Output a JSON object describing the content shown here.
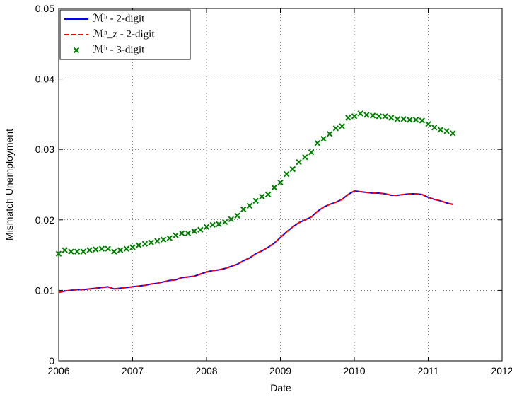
{
  "chart_data": {
    "type": "line",
    "xlabel": "Date",
    "ylabel": "Mismatch Unemployment",
    "xlim": [
      2006,
      2012
    ],
    "ylim": [
      0,
      0.05
    ],
    "xticks": [
      2006,
      2007,
      2008,
      2009,
      2010,
      2011,
      2012
    ],
    "yticks": [
      0,
      0.01,
      0.02,
      0.03,
      0.04,
      0.05
    ],
    "grid": true,
    "legend": "upper left",
    "x": [
      2006,
      2006.0833,
      2006.1667,
      2006.25,
      2006.3333,
      2006.4167,
      2006.5,
      2006.5833,
      2006.6667,
      2006.75,
      2006.8333,
      2006.9167,
      2007,
      2007.0833,
      2007.1667,
      2007.25,
      2007.3333,
      2007.4167,
      2007.5,
      2007.5833,
      2007.6667,
      2007.75,
      2007.8333,
      2007.9167,
      2008,
      2008.0833,
      2008.1667,
      2008.25,
      2008.3333,
      2008.4167,
      2008.5,
      2008.5833,
      2008.6667,
      2008.75,
      2008.8333,
      2008.9167,
      2009,
      2009.0833,
      2009.1667,
      2009.25,
      2009.3333,
      2009.4167,
      2009.5,
      2009.5833,
      2009.6667,
      2009.75,
      2009.8333,
      2009.9167,
      2010,
      2010.0833,
      2010.1667,
      2010.25,
      2010.3333,
      2010.4167,
      2010.5,
      2010.5833,
      2010.6667,
      2010.75,
      2010.8333,
      2010.9167,
      2011,
      2011.0833,
      2011.1667,
      2011.25,
      2011.3333
    ],
    "series": [
      {
        "name": "ℳʰ - 2-digit",
        "color": "#0000ff",
        "style": "solid",
        "values": [
          0.0097,
          0.0099,
          0.01,
          0.0101,
          0.0101,
          0.0102,
          0.0103,
          0.0104,
          0.0105,
          0.0102,
          0.0103,
          0.0104,
          0.0105,
          0.0106,
          0.0107,
          0.0109,
          0.011,
          0.0112,
          0.0114,
          0.0115,
          0.0118,
          0.0119,
          0.012,
          0.0123,
          0.0126,
          0.0128,
          0.0129,
          0.0131,
          0.0134,
          0.0137,
          0.0142,
          0.0146,
          0.0152,
          0.0156,
          0.0161,
          0.0167,
          0.0175,
          0.0183,
          0.019,
          0.0196,
          0.02,
          0.0204,
          0.0212,
          0.0218,
          0.0222,
          0.0225,
          0.0229,
          0.0236,
          0.0241,
          0.024,
          0.0239,
          0.0238,
          0.0238,
          0.0237,
          0.0235,
          0.0235,
          0.0236,
          0.0237,
          0.0237,
          0.0236,
          0.0232,
          0.0229,
          0.0227,
          0.0224,
          0.0222
        ]
      },
      {
        "name": "ℳʰ_z - 2-digit",
        "color": "#ff0000",
        "style": "dashed",
        "values": [
          0.0097,
          0.0099,
          0.01,
          0.0101,
          0.0101,
          0.0102,
          0.0103,
          0.0104,
          0.0105,
          0.0102,
          0.0103,
          0.0104,
          0.0105,
          0.0106,
          0.0107,
          0.0109,
          0.011,
          0.0112,
          0.0114,
          0.0115,
          0.0118,
          0.0119,
          0.012,
          0.0123,
          0.0126,
          0.0128,
          0.0129,
          0.0131,
          0.0134,
          0.0137,
          0.0142,
          0.0146,
          0.0152,
          0.0156,
          0.0161,
          0.0167,
          0.0175,
          0.0183,
          0.019,
          0.0196,
          0.02,
          0.0204,
          0.0212,
          0.0218,
          0.0222,
          0.0225,
          0.0229,
          0.0236,
          0.0241,
          0.024,
          0.0239,
          0.0238,
          0.0238,
          0.0237,
          0.0235,
          0.0235,
          0.0236,
          0.0237,
          0.0237,
          0.0236,
          0.0232,
          0.0229,
          0.0227,
          0.0224,
          0.0222
        ]
      },
      {
        "name": "ℳʰ - 3-digit",
        "color": "#008000",
        "style": "x-markers",
        "values": [
          0.0152,
          0.0157,
          0.0155,
          0.0155,
          0.0155,
          0.0157,
          0.0158,
          0.0159,
          0.0159,
          0.0155,
          0.0157,
          0.0159,
          0.0161,
          0.0164,
          0.0166,
          0.0168,
          0.017,
          0.0172,
          0.0174,
          0.0178,
          0.0181,
          0.0181,
          0.0184,
          0.0186,
          0.019,
          0.0193,
          0.0194,
          0.0197,
          0.0201,
          0.0206,
          0.0215,
          0.022,
          0.0227,
          0.0233,
          0.0236,
          0.0246,
          0.0253,
          0.0265,
          0.0272,
          0.0282,
          0.0289,
          0.0296,
          0.0309,
          0.0315,
          0.0322,
          0.033,
          0.0333,
          0.0345,
          0.0347,
          0.0351,
          0.0349,
          0.0348,
          0.0347,
          0.0347,
          0.0345,
          0.0343,
          0.0343,
          0.0342,
          0.0342,
          0.0341,
          0.0336,
          0.0331,
          0.0328,
          0.0326,
          0.0323
        ]
      }
    ]
  }
}
